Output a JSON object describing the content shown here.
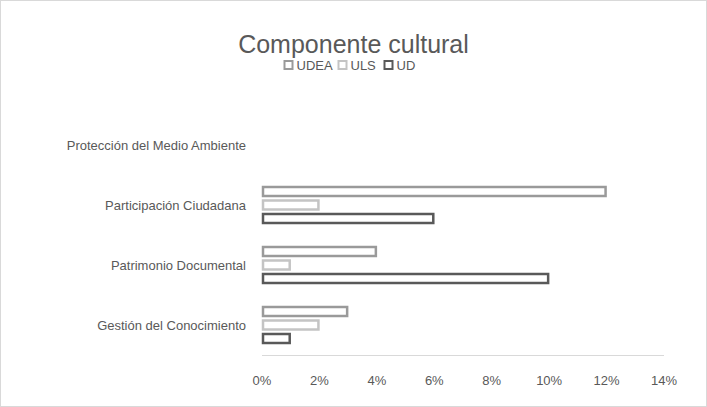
{
  "chart_data": {
    "type": "bar",
    "orientation": "horizontal",
    "title": "Componente cultural",
    "categories": [
      "Gestión del Conocimiento",
      "Patrimonio Documental",
      "Participación Ciudadana",
      "Protección del Medio Ambiente"
    ],
    "series": [
      {
        "name": "UDEA",
        "color": "#9a9a9a",
        "values": [
          3,
          4,
          12,
          0
        ]
      },
      {
        "name": "ULS",
        "color": "#c4c4c4",
        "values": [
          2,
          1,
          2,
          0
        ]
      },
      {
        "name": "UD",
        "color": "#595959",
        "values": [
          1,
          10,
          6,
          0
        ]
      }
    ],
    "xlim": [
      0,
      14
    ],
    "xticks": [
      {
        "value": 0,
        "label": "0%"
      },
      {
        "value": 2,
        "label": "2%"
      },
      {
        "value": 4,
        "label": "4%"
      },
      {
        "value": 6,
        "label": "6%"
      },
      {
        "value": 8,
        "label": "8%"
      },
      {
        "value": 10,
        "label": "10%"
      },
      {
        "value": 12,
        "label": "12%"
      },
      {
        "value": 14,
        "label": "14%"
      }
    ],
    "grid": false,
    "legend": "top"
  }
}
